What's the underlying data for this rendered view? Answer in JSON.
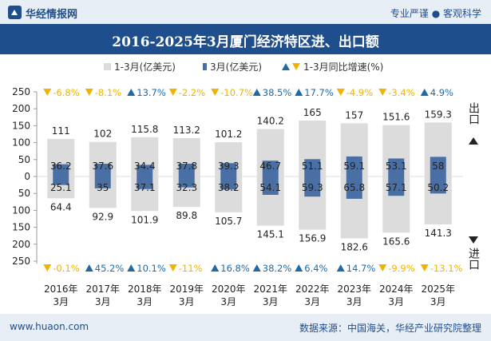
{
  "header": {
    "brand": "华经情报网",
    "tagline": "专业严谨 ● 客观科学"
  },
  "title": "2016-2025年3月厦门经济特区进、出口额",
  "legend": {
    "bar_total": "1-3月(亿美元)",
    "bar_month": "3月(亿美元)",
    "growth": "1-3月同比增速(%)"
  },
  "axis_side_labels": {
    "export": "出口",
    "import": "进口"
  },
  "footer": {
    "website": "www.huaon.com",
    "source": "数据来源：中国海关，华经产业研究院整理"
  },
  "colors": {
    "total_bar": "#dcdcdc",
    "month_bar": "#4a6fa5",
    "up_arrow": "#1f6aa5",
    "down_arrow": "#f0b400",
    "brand_blue": "#1f4e8c"
  },
  "chart_data": {
    "type": "bar",
    "categories": [
      "2016年\n3月",
      "2017年\n3月",
      "2018年\n3月",
      "2019年\n3月",
      "2020年\n3月",
      "2021年\n3月",
      "2022年\n3月",
      "2023年\n3月",
      "2024年\n3月",
      "2025年\n3月"
    ],
    "yticks": [
      "250",
      "200",
      "150",
      "100",
      "50",
      "0",
      "50",
      "100",
      "150",
      "200",
      "250"
    ],
    "ylim": [
      -250,
      250
    ],
    "export": {
      "ytd": [
        111,
        102,
        115.8,
        113.2,
        101.2,
        140.2,
        165,
        157,
        151.6,
        159.3
      ],
      "month": [
        36.2,
        37.6,
        34.4,
        37.8,
        39.3,
        46.7,
        51.1,
        59.1,
        53.1,
        58
      ],
      "growth": [
        -6.8,
        -8.1,
        13.7,
        -2.2,
        -10.7,
        38.5,
        17.7,
        -4.9,
        -3.4,
        4.9
      ],
      "growth_labels": [
        "-6.8%",
        "-8.1%",
        "13.7%",
        "-2.2%",
        "-10.7%",
        "38.5%",
        "17.7%",
        "-4.9%",
        "-3.4%",
        "4.9%"
      ]
    },
    "import": {
      "ytd": [
        64.4,
        92.9,
        101.9,
        89.8,
        105.7,
        145.1,
        156.9,
        182.6,
        165.6,
        141.3
      ],
      "month": [
        25.1,
        35,
        37.1,
        32.3,
        38.2,
        54.1,
        59.3,
        65.8,
        57.1,
        50.2
      ],
      "growth": [
        -0.1,
        45.2,
        10.1,
        -11,
        16.8,
        38.2,
        6.4,
        14.7,
        -9.9,
        -13.1
      ],
      "growth_labels": [
        "-0.1%",
        "45.2%",
        "10.1%",
        "-11%",
        "16.8%",
        "38.2%",
        "6.4%",
        "14.7%",
        "-9.9%",
        "-13.1%"
      ]
    }
  }
}
